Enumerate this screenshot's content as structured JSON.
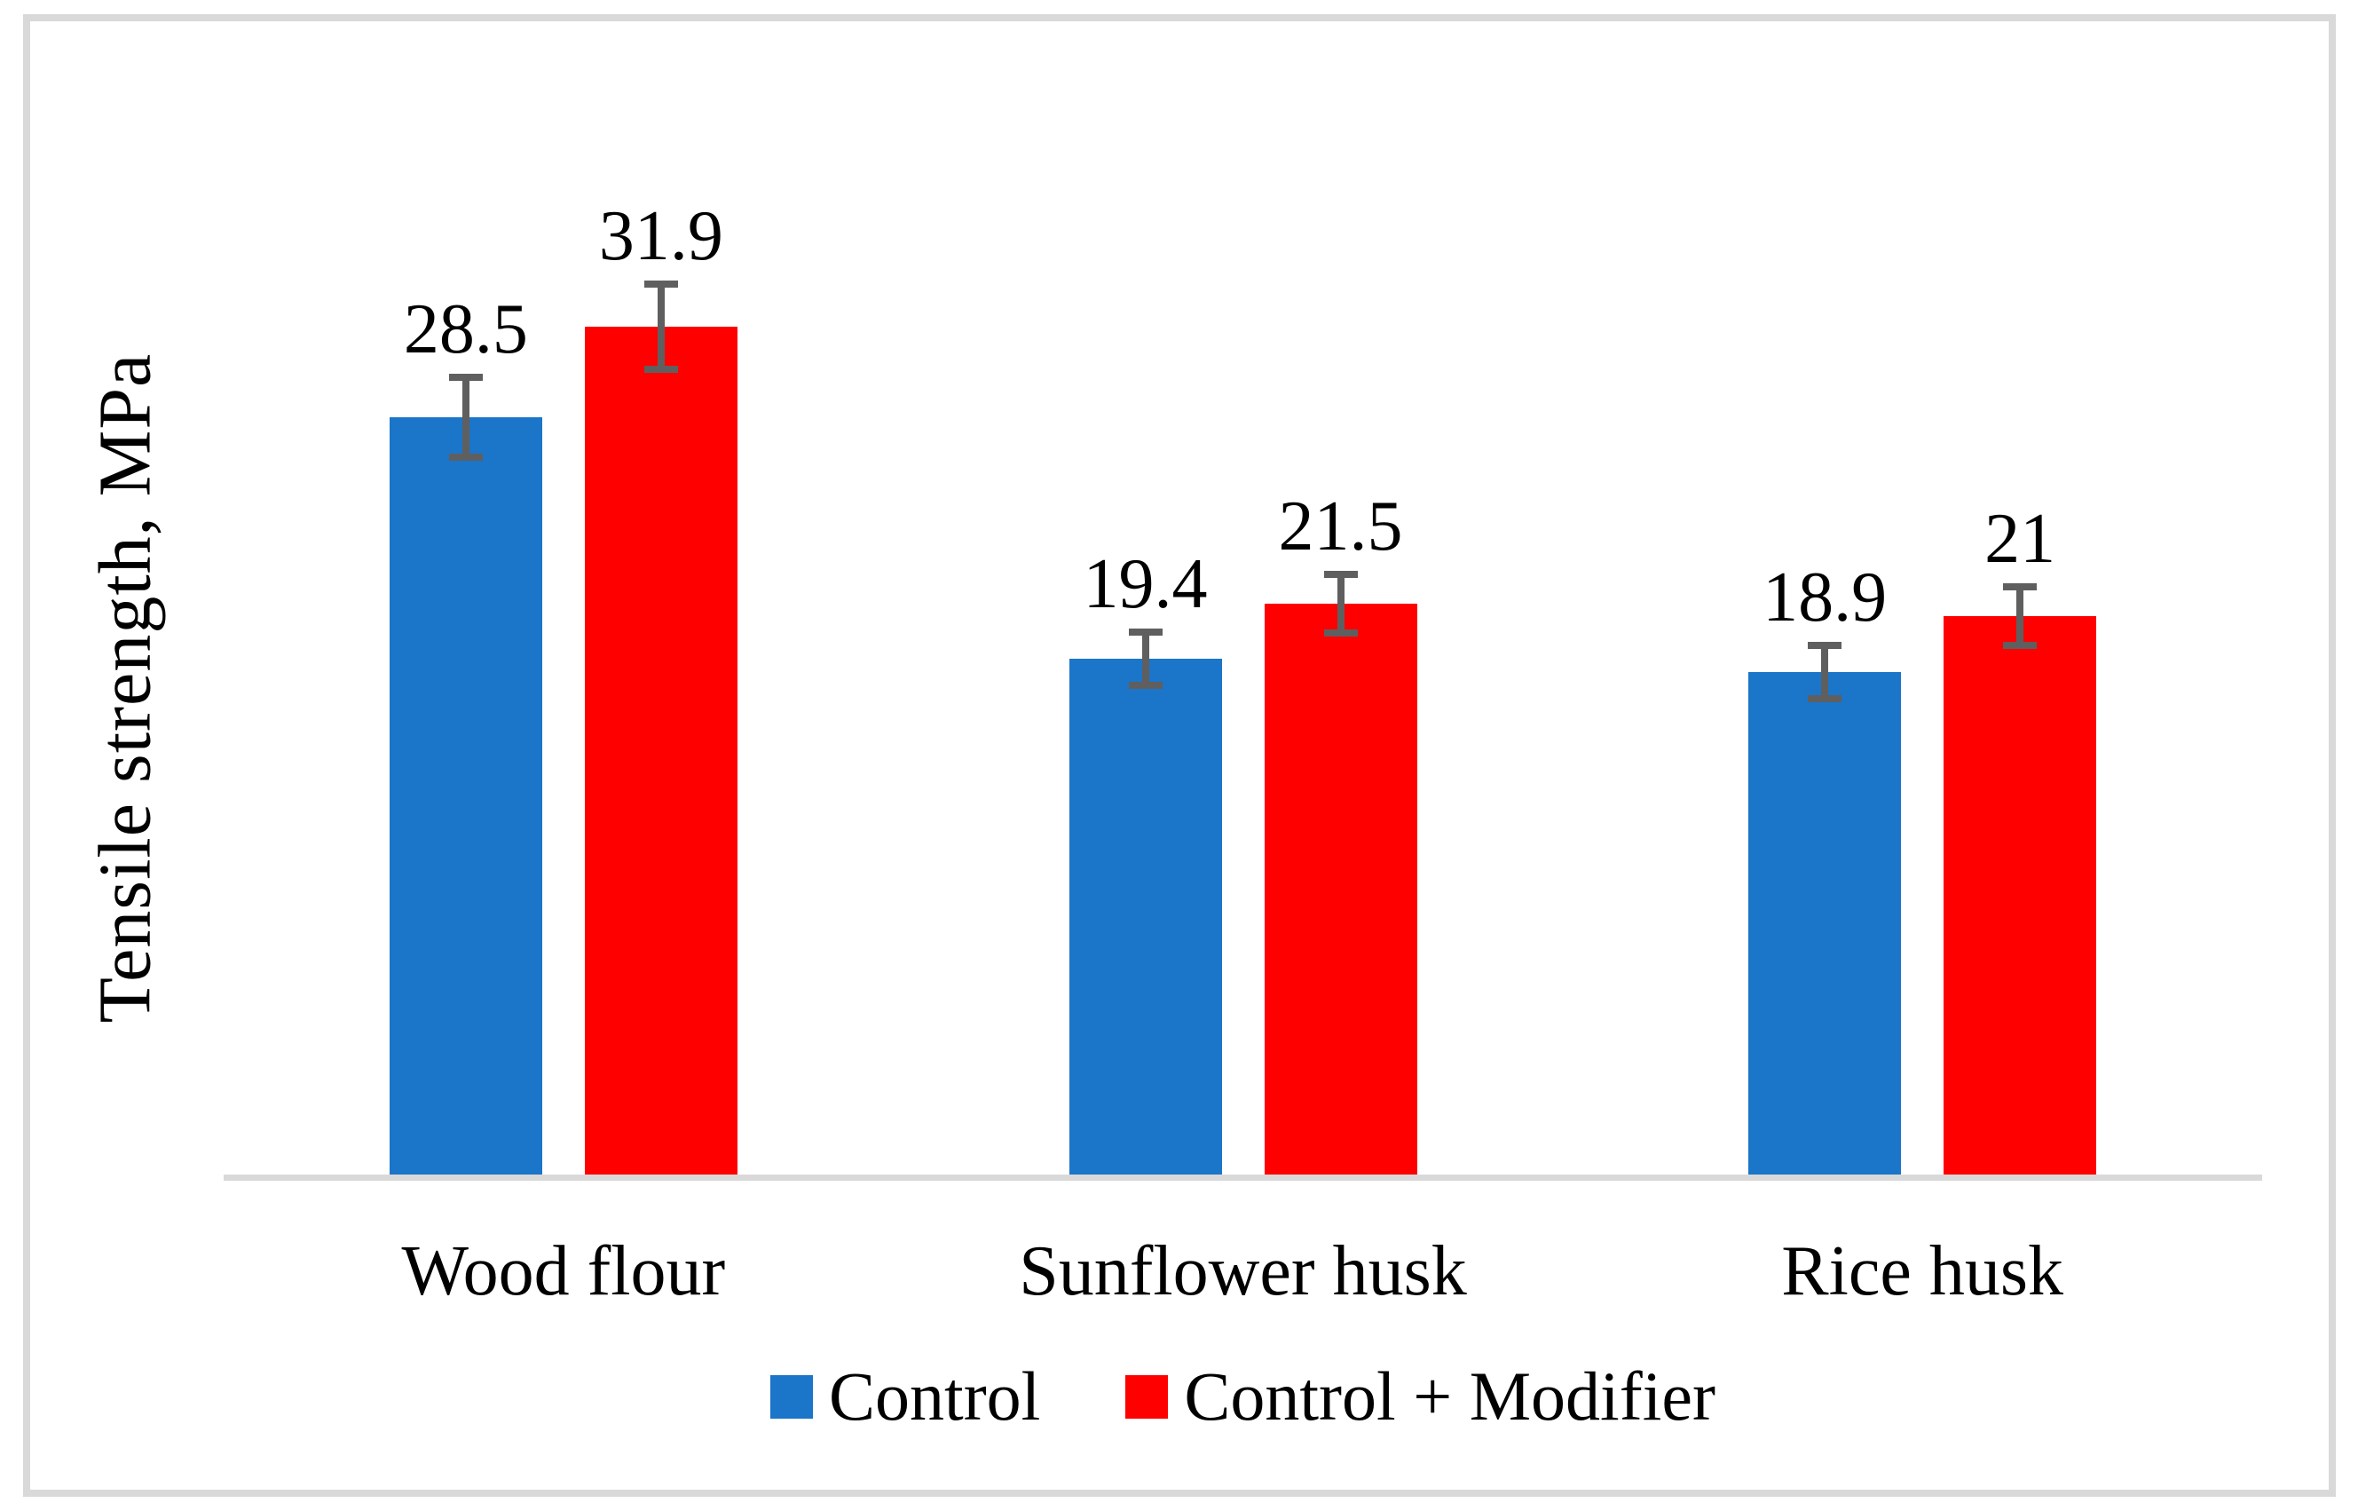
{
  "chart_data": {
    "type": "bar",
    "title": "",
    "xlabel": "",
    "ylabel": "Tensile strength, MPa",
    "categories": [
      "Wood flour",
      "Sunflower husk",
      "Rice husk"
    ],
    "series": [
      {
        "name": "Control",
        "color": "#1B75C9",
        "values": [
          28.5,
          19.4,
          18.9
        ],
        "value_labels": [
          "28.5",
          "19.4",
          "18.9"
        ],
        "errors": [
          1.5,
          1.0,
          1.0
        ]
      },
      {
        "name": "Control + Modifier",
        "color": "#FF0000",
        "values": [
          31.9,
          21.5,
          21
        ],
        "value_labels": [
          "31.9",
          "21.5",
          "21"
        ],
        "errors": [
          1.6,
          1.1,
          1.1
        ]
      }
    ],
    "ylim": [
      0,
      35
    ],
    "y_axis_ticks_visible": false,
    "grid": false,
    "legend_position": "bottom",
    "error_bar_color": "#5F5F5F",
    "axis_line_color": "#D9D9D9",
    "frame_color": "#D9D9D9",
    "text_color": "#000000"
  }
}
